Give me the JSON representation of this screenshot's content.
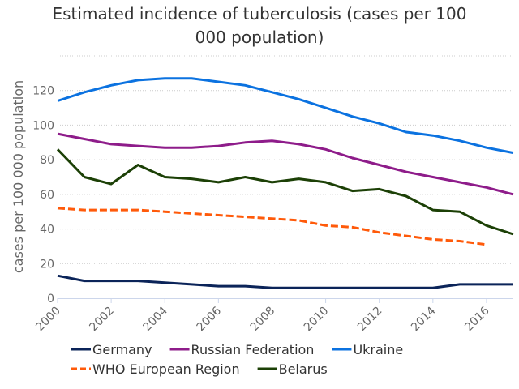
{
  "chart_data": {
    "type": "line",
    "title_lines": [
      "Estimated incidence of tuberculosis (cases per 100",
      "000 population)"
    ],
    "title": "Estimated incidence of tuberculosis (cases per 100 000 population)",
    "xlabel": "",
    "ylabel": "cases per 100 000 population",
    "xlim": [
      2000,
      2017
    ],
    "ylim": [
      0,
      140
    ],
    "x_ticks": [
      2000,
      2002,
      2004,
      2006,
      2008,
      2010,
      2012,
      2014,
      2016
    ],
    "y_ticks": [
      0,
      20,
      40,
      60,
      80,
      100,
      120
    ],
    "grid": true,
    "legend_position": "bottom",
    "series": [
      {
        "name": "Germany",
        "color": "#0b2459",
        "dash": "solid",
        "x": [
          2000,
          2001,
          2002,
          2003,
          2004,
          2005,
          2006,
          2007,
          2008,
          2009,
          2010,
          2011,
          2012,
          2013,
          2014,
          2015,
          2016,
          2017
        ],
        "values": [
          13,
          10,
          10,
          10,
          9,
          8,
          7,
          7,
          6,
          6,
          6,
          6,
          6,
          6,
          6,
          8,
          8,
          8
        ]
      },
      {
        "name": "Russian Federation",
        "color": "#8e1c8a",
        "dash": "solid",
        "x": [
          2000,
          2001,
          2002,
          2003,
          2004,
          2005,
          2006,
          2007,
          2008,
          2009,
          2010,
          2011,
          2012,
          2013,
          2014,
          2015,
          2016,
          2017
        ],
        "values": [
          95,
          92,
          89,
          88,
          87,
          87,
          88,
          90,
          91,
          89,
          86,
          81,
          77,
          73,
          70,
          67,
          64,
          60
        ]
      },
      {
        "name": "Ukraine",
        "color": "#0b72e0",
        "dash": "solid",
        "x": [
          2000,
          2001,
          2002,
          2003,
          2004,
          2005,
          2006,
          2007,
          2008,
          2009,
          2010,
          2011,
          2012,
          2013,
          2014,
          2015,
          2016,
          2017
        ],
        "values": [
          114,
          119,
          123,
          126,
          127,
          127,
          125,
          123,
          119,
          115,
          110,
          105,
          101,
          96,
          94,
          91,
          87,
          84
        ]
      },
      {
        "name": "WHO European Region",
        "color": "#ff5a0a",
        "dash": "dashed",
        "x": [
          2000,
          2001,
          2002,
          2003,
          2004,
          2005,
          2006,
          2007,
          2008,
          2009,
          2010,
          2011,
          2012,
          2013,
          2014,
          2015,
          2016
        ],
        "values": [
          52,
          51,
          51,
          51,
          50,
          49,
          48,
          47,
          46,
          45,
          42,
          41,
          38,
          36,
          34,
          33,
          31
        ]
      },
      {
        "name": "Belarus",
        "color": "#1c4006",
        "dash": "solid",
        "x": [
          2000,
          2001,
          2002,
          2003,
          2004,
          2005,
          2006,
          2007,
          2008,
          2009,
          2010,
          2011,
          2012,
          2013,
          2014,
          2015,
          2016,
          2017
        ],
        "values": [
          86,
          70,
          66,
          77,
          70,
          69,
          67,
          70,
          67,
          69,
          67,
          62,
          63,
          59,
          51,
          50,
          42,
          37
        ]
      }
    ],
    "legend_rows": [
      [
        "Germany",
        "Russian Federation",
        "Ukraine"
      ],
      [
        "WHO European Region",
        "Belarus"
      ]
    ]
  }
}
